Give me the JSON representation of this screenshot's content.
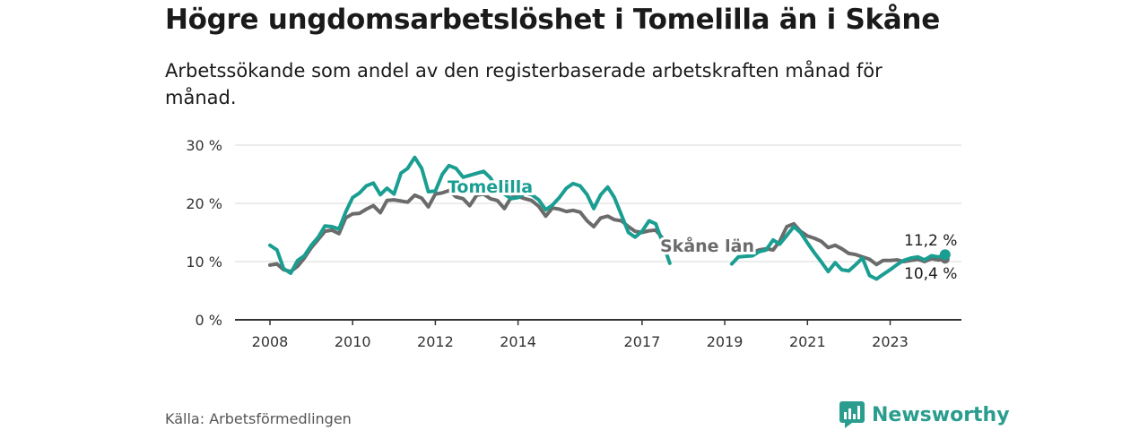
{
  "header": {
    "title": "Högre ungdomsarbetslöshet i Tomelilla än i Skåne",
    "subtitle": "Arbetssökande som andel av den registerbaserade arbetskraften månad för månad."
  },
  "footer": {
    "source": "Källa: Arbetsförmedlingen",
    "brand": "Newsworthy"
  },
  "colors": {
    "tomelilla": "#1a9e92",
    "skane": "#6b6b6b",
    "grid": "#d9d9d9",
    "axis": "#333333",
    "brand": "#2a9d8f"
  },
  "chart_data": {
    "type": "line",
    "title": "Högre ungdomsarbetslöshet i Tomelilla än i Skåne",
    "subtitle": "Arbetssökande som andel av den registerbaserade arbetskraften månad för månad.",
    "xlabel": "",
    "ylabel": "",
    "xlim": [
      2008.0,
      2025.0
    ],
    "ylim": [
      0,
      30
    ],
    "yticks": [
      0,
      10,
      20,
      30
    ],
    "ytick_labels": [
      "0 %",
      "10 %",
      "20 %",
      "30 %"
    ],
    "xticks": [
      2008,
      2010,
      2012,
      2014,
      2017,
      2019,
      2021,
      2023
    ],
    "xtick_labels": [
      "2008",
      "2010",
      "2012",
      "2014",
      "2017",
      "2019",
      "2021",
      "2023"
    ],
    "grid": true,
    "series": [
      {
        "name": "Tomelilla",
        "label": "Tomelilla",
        "end_label": "11,2 %",
        "end_value": 11.2,
        "points": [
          [
            2008.0,
            12.8
          ],
          [
            2008.17,
            12.0
          ],
          [
            2008.33,
            8.8
          ],
          [
            2008.5,
            8.0
          ],
          [
            2008.67,
            10.2
          ],
          [
            2008.83,
            11.0
          ],
          [
            2009.0,
            12.8
          ],
          [
            2009.17,
            14.2
          ],
          [
            2009.33,
            16.1
          ],
          [
            2009.5,
            16.0
          ],
          [
            2009.67,
            15.6
          ],
          [
            2009.83,
            18.5
          ],
          [
            2010.0,
            21.0
          ],
          [
            2010.17,
            21.8
          ],
          [
            2010.33,
            23.0
          ],
          [
            2010.5,
            23.5
          ],
          [
            2010.67,
            21.5
          ],
          [
            2010.83,
            22.6
          ],
          [
            2011.0,
            21.6
          ],
          [
            2011.17,
            25.2
          ],
          [
            2011.33,
            26.0
          ],
          [
            2011.5,
            27.9
          ],
          [
            2011.67,
            26.0
          ],
          [
            2011.83,
            22.0
          ],
          [
            2012.0,
            22.1
          ],
          [
            2012.17,
            25.0
          ],
          [
            2012.33,
            26.5
          ],
          [
            2012.5,
            26.0
          ],
          [
            2012.67,
            24.5
          ],
          [
            2013.17,
            25.5
          ],
          [
            2013.33,
            24.4
          ],
          [
            2013.5,
            22.4
          ],
          [
            2013.67,
            21.6
          ],
          [
            2013.83,
            20.8
          ],
          [
            2014.0,
            21.0
          ],
          [
            2014.17,
            21.8
          ],
          [
            2014.33,
            21.5
          ],
          [
            2014.5,
            20.6
          ],
          [
            2014.67,
            18.9
          ],
          [
            2014.83,
            19.7
          ],
          [
            2015.0,
            21.0
          ],
          [
            2015.17,
            22.6
          ],
          [
            2015.33,
            23.4
          ],
          [
            2015.5,
            23.0
          ],
          [
            2015.67,
            21.5
          ],
          [
            2015.83,
            19.1
          ],
          [
            2016.0,
            21.5
          ],
          [
            2016.17,
            22.8
          ],
          [
            2016.33,
            21.0
          ],
          [
            2016.5,
            18.0
          ],
          [
            2016.67,
            15.0
          ],
          [
            2016.83,
            14.2
          ],
          [
            2017.0,
            15.2
          ],
          [
            2017.17,
            17.0
          ],
          [
            2017.33,
            16.5
          ],
          [
            2017.5,
            13.2
          ],
          [
            2017.67,
            9.7
          ],
          [
            2019.17,
            9.6
          ],
          [
            2019.33,
            10.8
          ],
          [
            2019.67,
            11.0
          ],
          [
            2019.83,
            11.7
          ],
          [
            2020.0,
            12.0
          ],
          [
            2020.17,
            13.7
          ],
          [
            2020.33,
            13.0
          ],
          [
            2020.5,
            14.5
          ],
          [
            2020.67,
            16.0
          ],
          [
            2020.83,
            15.0
          ],
          [
            2021.0,
            13.2
          ],
          [
            2021.17,
            11.5
          ],
          [
            2021.33,
            10.0
          ],
          [
            2021.5,
            8.3
          ],
          [
            2021.67,
            9.8
          ],
          [
            2021.83,
            8.6
          ],
          [
            2022.0,
            8.4
          ],
          [
            2022.17,
            9.5
          ],
          [
            2022.33,
            10.6
          ],
          [
            2022.5,
            7.6
          ],
          [
            2022.67,
            7.0
          ],
          [
            2022.83,
            7.8
          ],
          [
            2023.0,
            8.6
          ],
          [
            2023.17,
            9.5
          ],
          [
            2023.33,
            10.2
          ],
          [
            2023.5,
            10.6
          ],
          [
            2023.67,
            10.8
          ],
          [
            2023.83,
            10.3
          ],
          [
            2024.0,
            11.0
          ],
          [
            2024.17,
            10.8
          ],
          [
            2024.33,
            11.2
          ]
        ]
      },
      {
        "name": "Skåne län",
        "label": "Skåne län",
        "end_label": "10,4 %",
        "end_value": 10.4,
        "points": [
          [
            2008.0,
            9.4
          ],
          [
            2008.17,
            9.6
          ],
          [
            2008.33,
            8.6
          ],
          [
            2008.5,
            8.3
          ],
          [
            2008.67,
            9.2
          ],
          [
            2008.83,
            10.6
          ],
          [
            2009.0,
            12.4
          ],
          [
            2009.17,
            13.8
          ],
          [
            2009.33,
            15.2
          ],
          [
            2009.5,
            15.4
          ],
          [
            2009.67,
            14.8
          ],
          [
            2009.83,
            17.5
          ],
          [
            2010.0,
            18.2
          ],
          [
            2010.17,
            18.3
          ],
          [
            2010.33,
            19.0
          ],
          [
            2010.5,
            19.6
          ],
          [
            2010.67,
            18.4
          ],
          [
            2010.83,
            20.5
          ],
          [
            2011.0,
            20.6
          ],
          [
            2011.17,
            20.4
          ],
          [
            2011.33,
            20.2
          ],
          [
            2011.5,
            21.4
          ],
          [
            2011.67,
            20.9
          ],
          [
            2011.83,
            19.4
          ],
          [
            2012.0,
            21.6
          ],
          [
            2012.17,
            21.8
          ],
          [
            2012.33,
            22.2
          ],
          [
            2012.5,
            21.1
          ],
          [
            2012.67,
            20.8
          ],
          [
            2012.83,
            19.6
          ],
          [
            2013.0,
            21.4
          ],
          [
            2013.17,
            21.6
          ],
          [
            2013.33,
            20.8
          ],
          [
            2013.5,
            20.5
          ],
          [
            2013.67,
            19.1
          ],
          [
            2013.83,
            21.0
          ],
          [
            2014.0,
            21.2
          ],
          [
            2014.17,
            20.8
          ],
          [
            2014.33,
            20.5
          ],
          [
            2014.5,
            19.5
          ],
          [
            2014.67,
            17.8
          ],
          [
            2014.83,
            19.2
          ],
          [
            2015.0,
            19.0
          ],
          [
            2015.17,
            18.6
          ],
          [
            2015.33,
            18.8
          ],
          [
            2015.5,
            18.5
          ],
          [
            2015.67,
            17.0
          ],
          [
            2015.83,
            16.0
          ],
          [
            2016.0,
            17.5
          ],
          [
            2016.17,
            17.8
          ],
          [
            2016.33,
            17.2
          ],
          [
            2016.5,
            17.0
          ],
          [
            2016.67,
            16.0
          ],
          [
            2016.83,
            15.2
          ],
          [
            2017.0,
            15.0
          ],
          [
            2017.17,
            15.3
          ],
          [
            2017.33,
            15.4
          ],
          [
            2017.5,
            14.0
          ],
          [
            2017.67,
            12.4
          ],
          [
            2019.67,
            11.6
          ],
          [
            2019.83,
            12.0
          ],
          [
            2020.0,
            12.2
          ],
          [
            2020.17,
            12.0
          ],
          [
            2020.33,
            13.5
          ],
          [
            2020.5,
            16.0
          ],
          [
            2020.67,
            16.5
          ],
          [
            2020.83,
            15.2
          ],
          [
            2021.0,
            14.4
          ],
          [
            2021.17,
            14.0
          ],
          [
            2021.33,
            13.5
          ],
          [
            2021.5,
            12.4
          ],
          [
            2021.67,
            12.8
          ],
          [
            2021.83,
            12.2
          ],
          [
            2022.0,
            11.4
          ],
          [
            2022.17,
            11.2
          ],
          [
            2022.33,
            10.8
          ],
          [
            2022.5,
            10.4
          ],
          [
            2022.67,
            9.5
          ],
          [
            2022.83,
            10.2
          ],
          [
            2023.0,
            10.2
          ],
          [
            2023.17,
            10.3
          ],
          [
            2023.33,
            10.0
          ],
          [
            2023.5,
            10.2
          ],
          [
            2023.67,
            10.4
          ],
          [
            2023.83,
            10.0
          ],
          [
            2024.0,
            10.5
          ],
          [
            2024.17,
            10.3
          ],
          [
            2024.33,
            10.4
          ]
        ]
      }
    ]
  }
}
